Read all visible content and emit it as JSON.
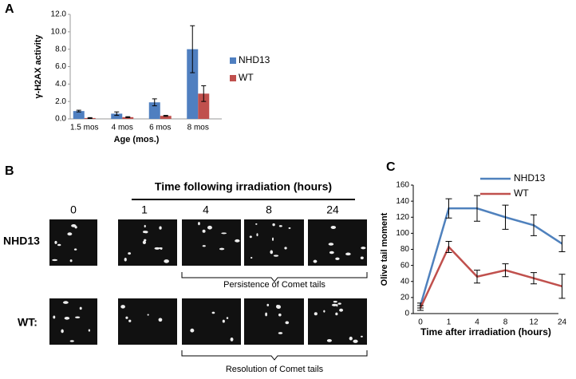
{
  "chart_data": [
    {
      "type": "bar",
      "panel_label": "A",
      "y_label": "γ-H2AX activity",
      "x_label": "Age (mos.)",
      "categories": [
        "1.5 mos",
        "4 mos",
        "6 mos",
        "8 mos"
      ],
      "series": [
        {
          "name": "NHD13",
          "color": "#4f7fc0",
          "values": [
            0.9,
            0.6,
            1.9,
            8.0
          ],
          "errors": [
            0.1,
            0.2,
            0.4,
            2.7
          ]
        },
        {
          "name": "WT",
          "color": "#c0504d",
          "values": [
            0.1,
            0.2,
            0.35,
            2.9
          ],
          "errors": [
            0.05,
            0.05,
            0.05,
            0.9
          ]
        }
      ],
      "ylim": [
        0,
        12
      ],
      "yticks": [
        {
          "value": 0,
          "label": "0.0"
        },
        {
          "value": 2,
          "label": "2.0"
        },
        {
          "value": 4,
          "label": "4.0"
        },
        {
          "value": 6,
          "label": "6.0"
        },
        {
          "value": 8,
          "label": "8.0"
        },
        {
          "value": 10,
          "label": "10.0"
        },
        {
          "value": 12,
          "label": "12.0"
        }
      ],
      "legend": "right"
    },
    {
      "type": "line",
      "panel_label": "C",
      "y_label": "Olive tail moment",
      "x_label": "Time after irradiation (hours)",
      "categories": [
        "0",
        "1",
        "4",
        "8",
        "12",
        "24"
      ],
      "series": [
        {
          "name": "NHD13",
          "color": "#4f81bd",
          "values": [
            10,
            131,
            131,
            120,
            110,
            87
          ],
          "errors": [
            3,
            12,
            16,
            15,
            13,
            10
          ]
        },
        {
          "name": "WT",
          "color": "#c0504d",
          "values": [
            7,
            83,
            46,
            54,
            44,
            34
          ],
          "errors": [
            3,
            7,
            8,
            8,
            7,
            15
          ]
        }
      ],
      "ylim": [
        0,
        160
      ],
      "yticks": [
        0,
        20,
        40,
        60,
        80,
        100,
        120,
        140,
        160
      ],
      "legend": "top-right"
    }
  ],
  "panel_b": {
    "label": "B",
    "header": "Time following irradiation (hours)",
    "times": [
      "0",
      "1",
      "4",
      "8",
      "24"
    ],
    "rows": [
      "NHD13",
      "WT:"
    ],
    "brackets": [
      "Persistence of Comet tails",
      "Resolution of Comet tails"
    ]
  }
}
